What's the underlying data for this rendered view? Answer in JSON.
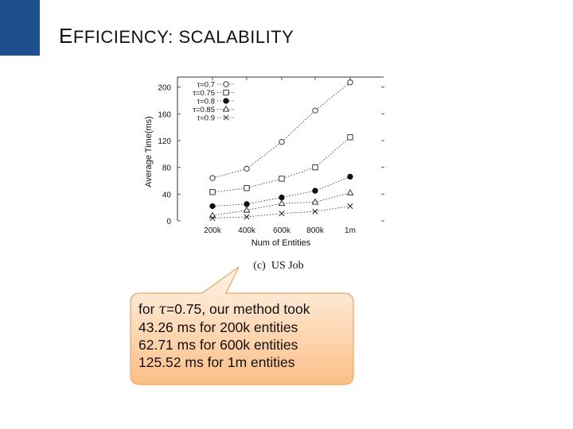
{
  "slide": {
    "title_initial": "E",
    "title_rest": "FFICIENCY: SCALABILITY",
    "accent_color": "#1f4e8c"
  },
  "chart_data": {
    "type": "line",
    "xlabel": "Num of Entities",
    "ylabel": "Average Time(ms)",
    "caption": "(c)  US Job",
    "categories": [
      "200k",
      "400k",
      "600k",
      "800k",
      "1m"
    ],
    "yticks": [
      0,
      40,
      80,
      120,
      160,
      200
    ],
    "ylim": [
      0,
      215
    ],
    "grid": false,
    "legend_position": "top-left",
    "series": [
      {
        "name": "τ=0.7",
        "marker": "circle-open",
        "values": [
          64,
          78,
          118,
          165,
          207
        ]
      },
      {
        "name": "τ=0.75",
        "marker": "square-open",
        "values": [
          43,
          49,
          63,
          80,
          125
        ]
      },
      {
        "name": "τ=0.8",
        "marker": "circle-filled",
        "values": [
          22,
          25,
          35,
          45,
          66
        ]
      },
      {
        "name": "τ=0.85",
        "marker": "triangle-open",
        "values": [
          8,
          16,
          26,
          28,
          42
        ]
      },
      {
        "name": "τ=0.9",
        "marker": "x",
        "values": [
          4,
          6,
          11,
          14,
          22
        ]
      }
    ]
  },
  "callout": {
    "line1_prefix": "for ",
    "line1_symbol": "τ",
    "line1_suffix": "=0.75, our method took",
    "line2": "43.26 ms for 200k entities",
    "line3": "62.71 ms for 600k entities",
    "line4": "125.52 ms for 1m entities",
    "fill_top": "#fff5ea",
    "fill_bottom": "#fbbf86",
    "border": "#f4a460"
  }
}
